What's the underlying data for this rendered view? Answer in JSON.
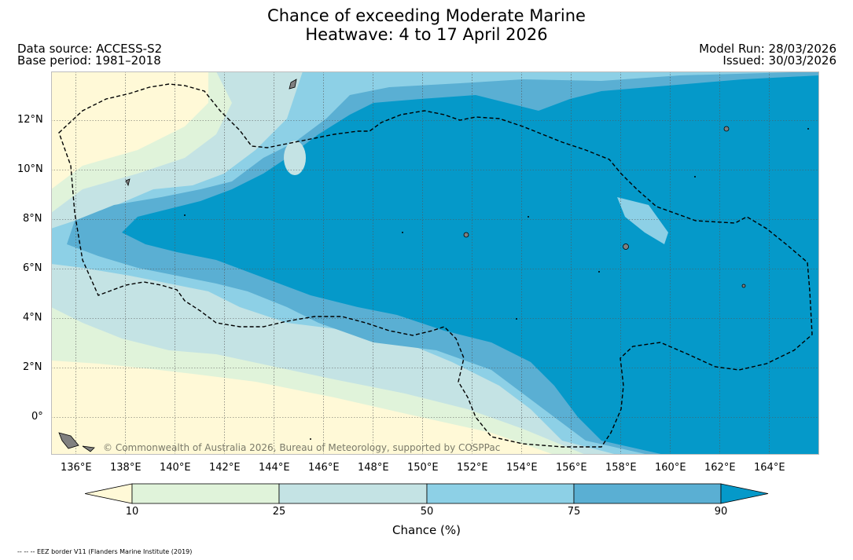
{
  "title": {
    "line1": "Chance of exceeding Moderate Marine",
    "line2": "Heatwave: 4 to 17 April 2026"
  },
  "meta": {
    "data_source": "Data source: ACCESS-S2",
    "base_period": "Base period: 1981–2018",
    "model_run": "Model Run: 28/03/2026",
    "issued": "Issued: 30/03/2026"
  },
  "map": {
    "lon_range": [
      135,
      166
    ],
    "lat_range": [
      -1.5,
      14
    ],
    "lon_ticks": [
      "136°E",
      "138°E",
      "140°E",
      "142°E",
      "144°E",
      "146°E",
      "148°E",
      "150°E",
      "152°E",
      "154°E",
      "156°E",
      "158°E",
      "160°E",
      "162°E",
      "164°E"
    ],
    "lat_ticks": [
      "12°N",
      "10°N",
      "8°N",
      "6°N",
      "4°N",
      "2°N",
      "0°"
    ],
    "copyright": "© Commonwealth of Australia 2026, Bureau of Meteorology, supported by COSPPac",
    "colors": {
      "below10": "#fff9d7",
      "c10_25": "#e0f3da",
      "c25_50": "#c4e3e4",
      "c50_75": "#8dd0e6",
      "c75_90": "#5aafd3",
      "c90": "#0599c9",
      "land": "#808080"
    }
  },
  "colorbar": {
    "labels": [
      "10",
      "25",
      "50",
      "75",
      "90"
    ],
    "title": "Chance (%)",
    "colors": [
      "#fff9d7",
      "#e0f3da",
      "#c4e3e4",
      "#8dd0e6",
      "#5aafd3",
      "#0599c9"
    ]
  },
  "footnote": "-- -- -- EEZ border V11 (Flanders Marine Institute (2019)"
}
